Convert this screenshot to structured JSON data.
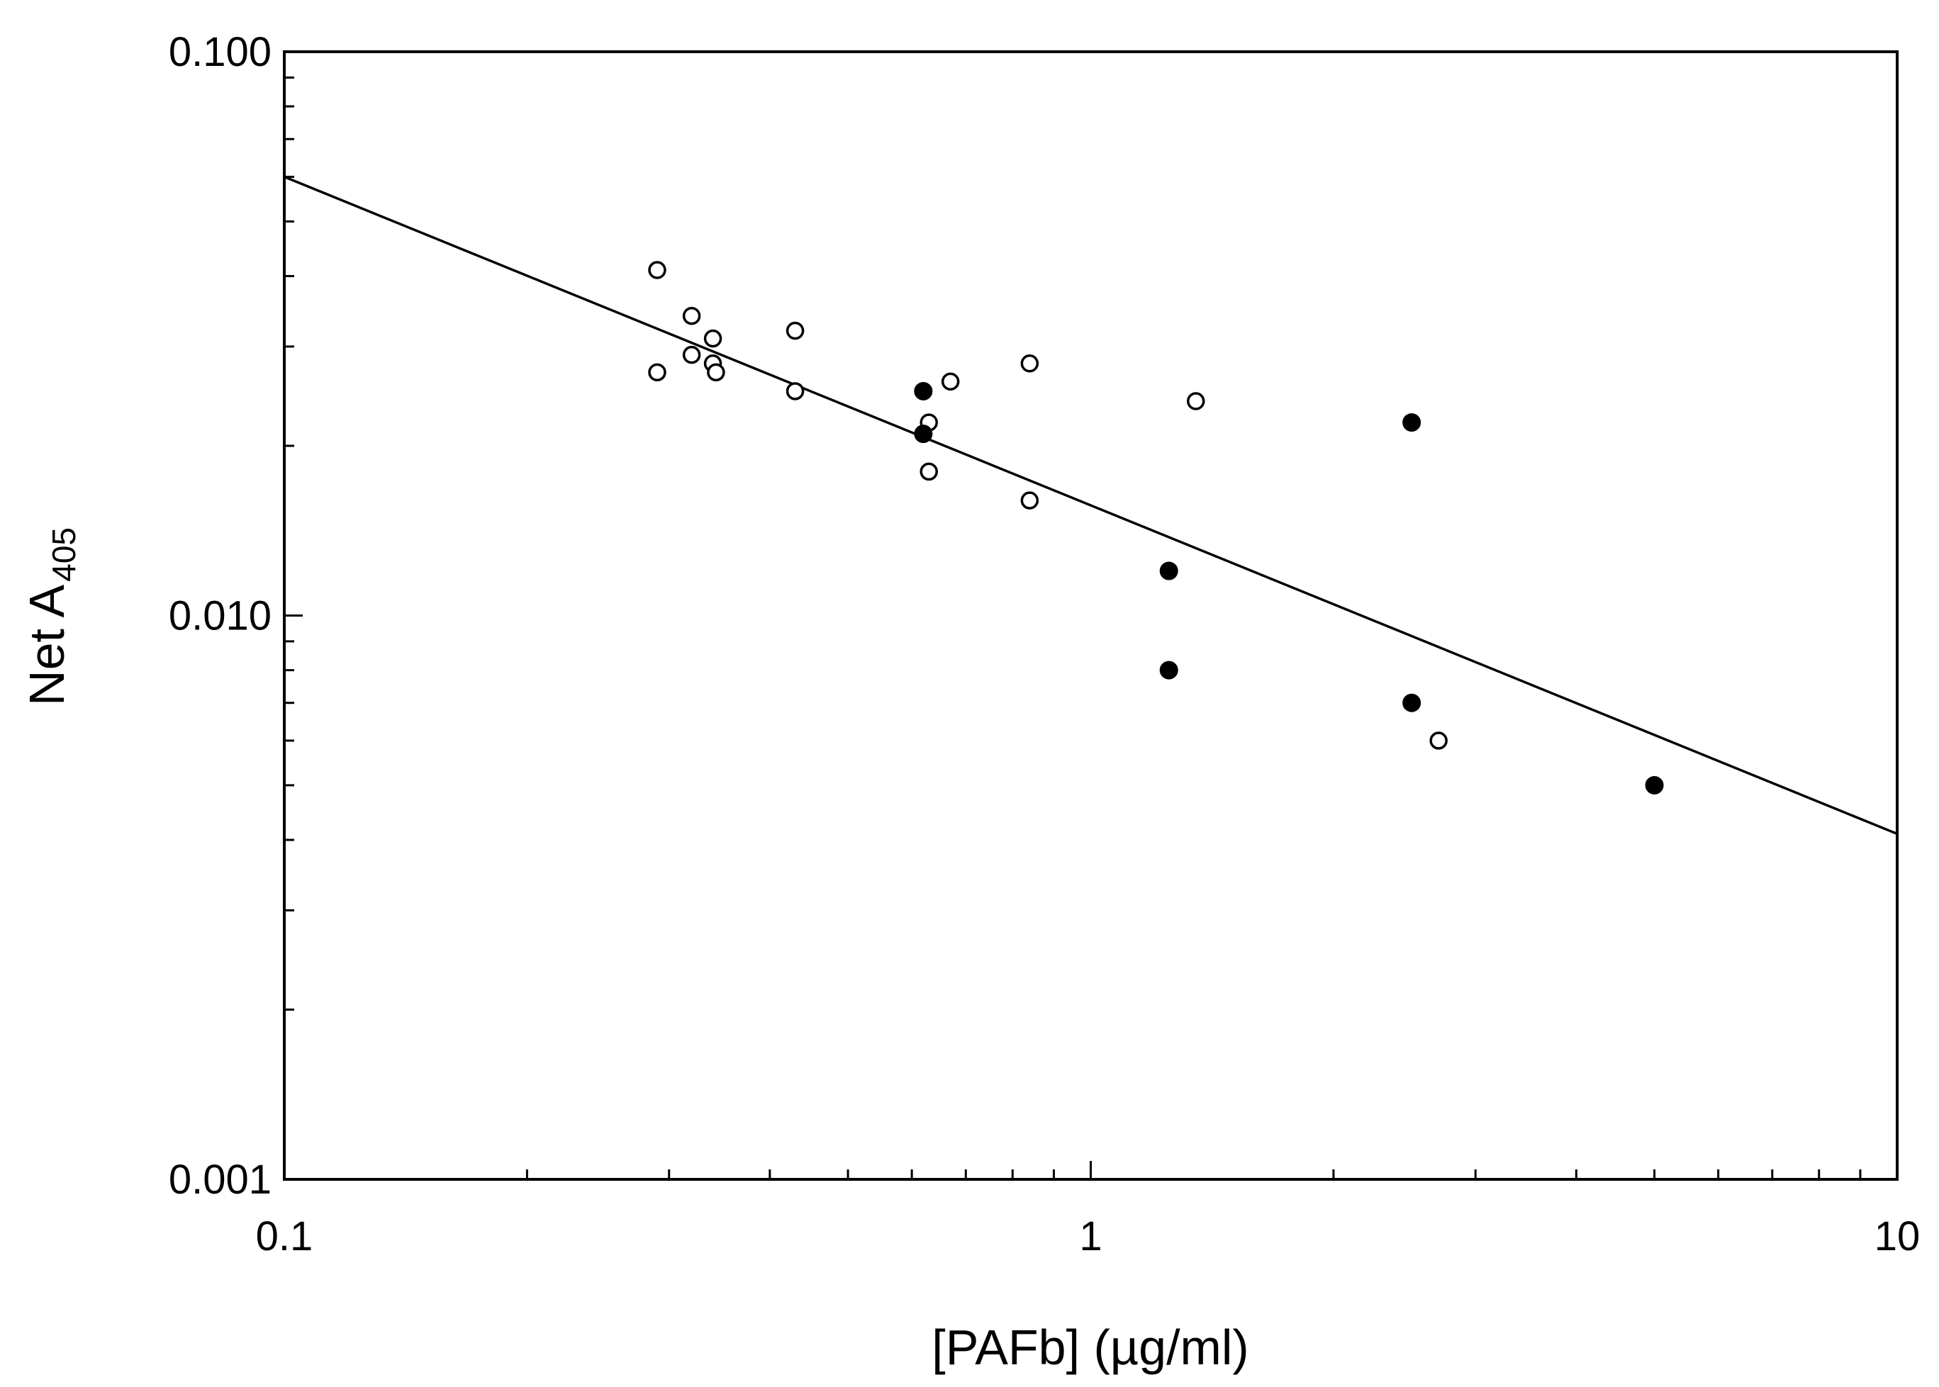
{
  "chart_data": {
    "type": "scatter",
    "title": "",
    "xlabel": "[PAFb] (µg/ml)",
    "ylabel_main": "Net A",
    "ylabel_sub": "405",
    "xscale": "log",
    "yscale": "log",
    "xlim": [
      0.1,
      10
    ],
    "ylim": [
      0.001,
      0.1
    ],
    "grid": false,
    "x_tick_labels": [
      {
        "value": 0.1,
        "label": "0.1"
      },
      {
        "value": 1,
        "label": "1"
      },
      {
        "value": 10,
        "label": "10"
      }
    ],
    "y_tick_labels": [
      {
        "value": 0.001,
        "label": "0.001"
      },
      {
        "value": 0.01,
        "label": "0.010"
      },
      {
        "value": 0.1,
        "label": "0.100"
      }
    ],
    "series": [
      {
        "name": "open circles",
        "marker": "open-circle",
        "points": [
          {
            "x": 0.29,
            "y": 0.041
          },
          {
            "x": 0.29,
            "y": 0.027
          },
          {
            "x": 0.32,
            "y": 0.034
          },
          {
            "x": 0.32,
            "y": 0.029
          },
          {
            "x": 0.34,
            "y": 0.031
          },
          {
            "x": 0.34,
            "y": 0.028
          },
          {
            "x": 0.343,
            "y": 0.027
          },
          {
            "x": 0.43,
            "y": 0.032
          },
          {
            "x": 0.43,
            "y": 0.025
          },
          {
            "x": 0.63,
            "y": 0.022
          },
          {
            "x": 0.63,
            "y": 0.018
          },
          {
            "x": 0.67,
            "y": 0.026
          },
          {
            "x": 0.84,
            "y": 0.028
          },
          {
            "x": 0.84,
            "y": 0.016
          },
          {
            "x": 1.35,
            "y": 0.024
          },
          {
            "x": 2.7,
            "y": 0.006
          }
        ]
      },
      {
        "name": "filled circles",
        "marker": "filled-circle",
        "points": [
          {
            "x": 0.62,
            "y": 0.025
          },
          {
            "x": 0.62,
            "y": 0.021
          },
          {
            "x": 1.25,
            "y": 0.012
          },
          {
            "x": 1.25,
            "y": 0.008
          },
          {
            "x": 2.5,
            "y": 0.022
          },
          {
            "x": 2.5,
            "y": 0.007
          },
          {
            "x": 5.0,
            "y": 0.005
          }
        ]
      }
    ],
    "fit_line": {
      "type": "power-law regression",
      "points": [
        {
          "x": 0.1,
          "y": 0.06
        },
        {
          "x": 10,
          "y": 0.0041
        }
      ]
    }
  }
}
